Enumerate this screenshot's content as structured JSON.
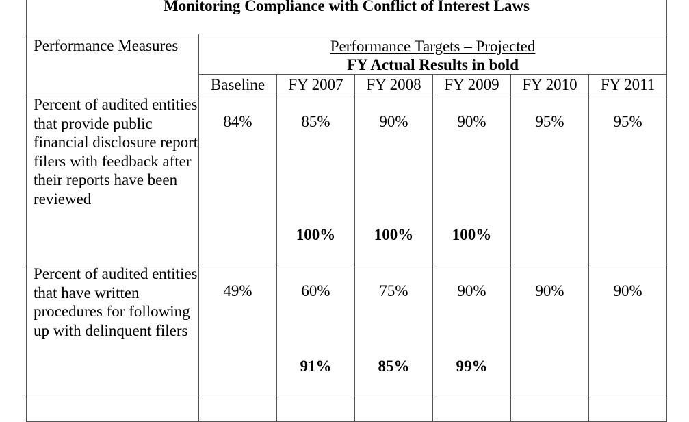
{
  "title": "Monitoring Compliance with Conflict of Interest Laws",
  "table": {
    "measures_header": "Performance Measures",
    "targets_header_line1": "Performance Targets – Projected",
    "targets_header_line2": "FY Actual Results in bold",
    "columns": [
      "Baseline",
      "FY 2007",
      "FY 2008",
      "FY 2009",
      "FY 2010",
      "FY 2011"
    ],
    "rows": [
      {
        "measure": "Percent of audited entities that provide public financial disclosure report filers with feedback after their reports have been reviewed",
        "targets": [
          "84%",
          "85%",
          "90%",
          "90%",
          "95%",
          "95%"
        ],
        "actuals": [
          "",
          "100%",
          "100%",
          "100%",
          "",
          ""
        ]
      },
      {
        "measure": "Percent of audited entities that have written procedures for following up with delinquent filers",
        "targets": [
          "49%",
          "60%",
          "75%",
          "90%",
          "90%",
          "90%"
        ],
        "actuals": [
          "",
          "91%",
          "85%",
          "99%",
          "",
          ""
        ]
      }
    ]
  }
}
